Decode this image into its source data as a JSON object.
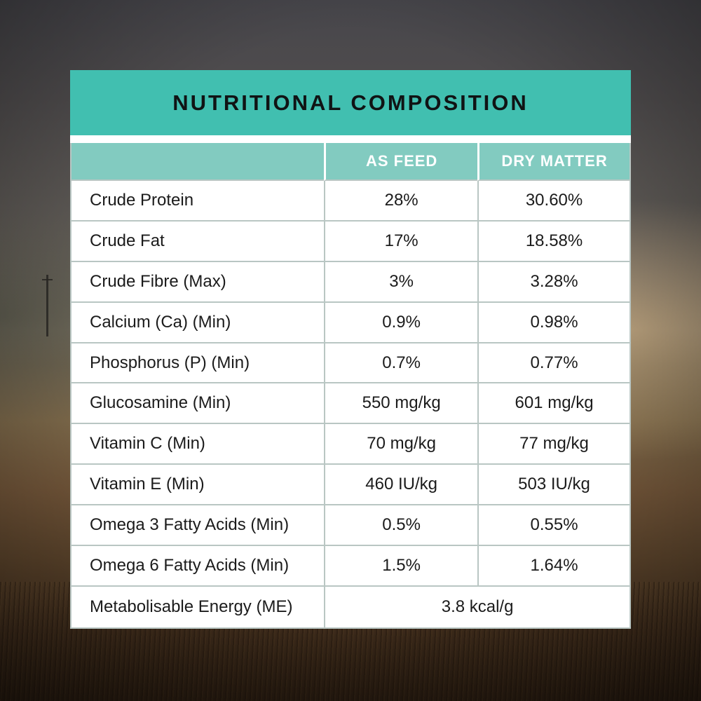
{
  "panel": {
    "title": "NUTRITIONAL COMPOSITION",
    "columns": [
      "AS FEED",
      "DRY MATTER"
    ],
    "rows": [
      {
        "label": "Crude Protein",
        "as_feed": "28%",
        "dry_matter": "30.60%"
      },
      {
        "label": "Crude Fat",
        "as_feed": "17%",
        "dry_matter": "18.58%"
      },
      {
        "label": "Crude Fibre (Max)",
        "as_feed": "3%",
        "dry_matter": "3.28%"
      },
      {
        "label": "Calcium (Ca) (Min)",
        "as_feed": "0.9%",
        "dry_matter": "0.98%"
      },
      {
        "label": "Phosphorus (P) (Min)",
        "as_feed": "0.7%",
        "dry_matter": "0.77%"
      },
      {
        "label": "Glucosamine (Min)",
        "as_feed": "550 mg/kg",
        "dry_matter": "601 mg/kg"
      },
      {
        "label": "Vitamin C (Min)",
        "as_feed": "70 mg/kg",
        "dry_matter": "77 mg/kg"
      },
      {
        "label": "Vitamin E (Min)",
        "as_feed": "460 IU/kg",
        "dry_matter": "503 IU/kg"
      },
      {
        "label": "Omega 3 Fatty Acids (Min)",
        "as_feed": "0.5%",
        "dry_matter": "0.55%"
      },
      {
        "label": "Omega 6 Fatty Acids (Min)",
        "as_feed": "1.5%",
        "dry_matter": "1.64%"
      }
    ],
    "merged_row": {
      "label": "Metabolisable Energy (ME)",
      "value": "3.8 kcal/g"
    },
    "colors": {
      "title_bg": "#41bfb0",
      "header_bg": "#82cbc0",
      "grid_line": "#b9c6c3",
      "body_bg": "#ffffff",
      "text": "#1b1b1b",
      "header_text": "#ffffff"
    }
  }
}
